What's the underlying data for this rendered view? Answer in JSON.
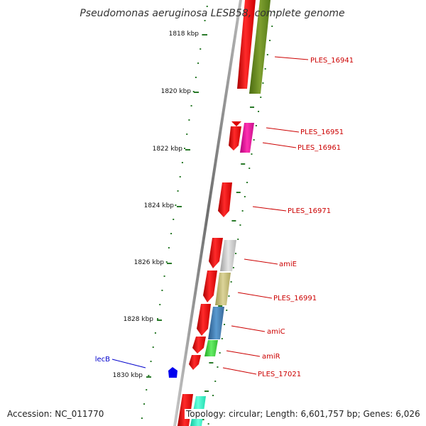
{
  "title": "Pseudomonas aeruginosa LESB58, complete genome",
  "ticks": [
    "1818 kbp",
    "1820 kbp",
    "1822 kbp",
    "1824 kbp",
    "1826 kbp",
    "1828 kbp",
    "1830 kbp"
  ],
  "gene_labels": [
    "PLES_16941",
    "PLES_16951",
    "PLES_16961",
    "PLES_16971",
    "amiE",
    "PLES_16991",
    "amiC",
    "amiR",
    "PLES_17021",
    "lecB"
  ],
  "footer": {
    "accession": "Accession: NC_011770",
    "topology": "Topology: circular; Length: 6,601,757 bp; Genes: 6,026"
  },
  "colors": {
    "forward": "#ee0000",
    "olive": "#6b8e23",
    "magenta": "#e0109a",
    "silver": "#c8c8c8",
    "khaki": "#c8c080",
    "steel": "#4682b4",
    "lime": "#44cc44",
    "aqua": "#33ffcc",
    "lecB": "#0000ee",
    "tick": "#2a7a2a"
  }
}
